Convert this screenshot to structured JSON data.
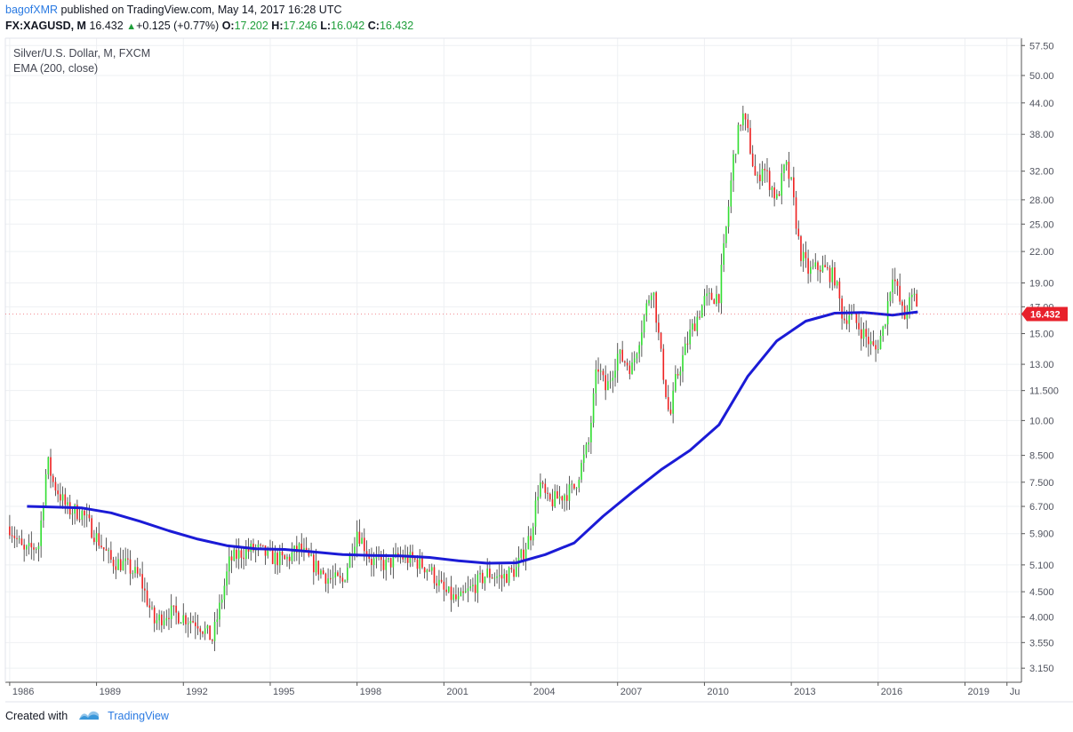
{
  "header": {
    "user": "bagofXMR",
    "published": "published on TradingView.com, May 14, 2017 16:28 UTC",
    "symbol": "FX:XAGUSD, M",
    "price": "16.432",
    "change": "+0.125 (+0.77%)",
    "o_label": "O:",
    "o": "17.202",
    "h_label": "H:",
    "h": "17.246",
    "l_label": "L:",
    "l": "16.042",
    "c_label": "C:",
    "c": "16.432"
  },
  "legend": {
    "title": "Silver/U.S. Dollar, M, FXCM",
    "indicator": "EMA (200, close)"
  },
  "footer": {
    "created_with": "Created with",
    "brand": "TradingView"
  },
  "colors": {
    "up": "#33dd33",
    "down": "#ee2222",
    "ema": "#1b1bd6",
    "price_label": "#e8212b",
    "grid": "#eef0f3"
  },
  "chart_data": {
    "type": "line",
    "title": "Silver/U.S. Dollar, M, FXCM",
    "xlabel": "",
    "ylabel": "",
    "y_scale": "log",
    "xlim": [
      1985.85,
      2020.95
    ],
    "ylim": [
      2.95,
      59.5
    ],
    "x_ticks": [
      "1986",
      "1989",
      "1992",
      "1995",
      "1998",
      "2001",
      "2004",
      "2007",
      "2010",
      "2013",
      "2016",
      "2019",
      "Ju"
    ],
    "y_ticks": [
      "57.50",
      "50.00",
      "44.00",
      "38.00",
      "32.00",
      "28.00",
      "25.00",
      "22.00",
      "19.00",
      "17.00",
      "15.00",
      "13.00",
      "11.500",
      "10.00",
      "8.500",
      "7.500",
      "6.700",
      "5.900",
      "5.100",
      "4.500",
      "4.000",
      "3.550",
      "3.150"
    ],
    "last_price_label": "16.432",
    "grid": true,
    "series": [
      {
        "name": "Silver/U.S. Dollar",
        "x": [
          1986.0,
          1986.5,
          1987.0,
          1987.3,
          1987.5,
          1988.0,
          1988.5,
          1989.0,
          1989.5,
          1990.0,
          1990.5,
          1991.0,
          1991.5,
          1992.0,
          1992.5,
          1993.0,
          1993.3,
          1993.6,
          1994.0,
          1994.5,
          1995.0,
          1995.5,
          1996.0,
          1996.5,
          1997.0,
          1997.5,
          1998.0,
          1998.5,
          1999.0,
          1999.5,
          2000.0,
          2000.5,
          2001.0,
          2001.5,
          2002.0,
          2002.5,
          2003.0,
          2003.5,
          2004.0,
          2004.3,
          2004.6,
          2005.0,
          2005.5,
          2006.0,
          2006.3,
          2006.6,
          2007.0,
          2007.5,
          2008.0,
          2008.2,
          2008.5,
          2008.8,
          2009.0,
          2009.5,
          2010.0,
          2010.5,
          2010.8,
          2011.0,
          2011.3,
          2011.5,
          2011.8,
          2012.0,
          2012.5,
          2012.8,
          2013.0,
          2013.3,
          2013.6,
          2014.0,
          2014.5,
          2014.8,
          2015.0,
          2015.5,
          2015.9,
          2016.2,
          2016.5,
          2016.9,
          2017.0,
          2017.3,
          2017.37
        ],
        "values": [
          6.1,
          5.4,
          5.6,
          8.3,
          7.5,
          6.6,
          6.5,
          5.8,
          5.2,
          5.1,
          4.8,
          3.9,
          4.1,
          4.0,
          3.9,
          3.6,
          4.3,
          5.2,
          5.4,
          5.5,
          5.3,
          5.2,
          5.5,
          5.1,
          4.8,
          4.7,
          6.0,
          5.2,
          5.1,
          5.3,
          5.2,
          5.0,
          4.5,
          4.3,
          4.6,
          4.9,
          4.8,
          5.0,
          5.9,
          7.5,
          6.8,
          7.0,
          7.3,
          9.0,
          13.0,
          11.5,
          13.6,
          12.8,
          17.0,
          19.0,
          13.5,
          10.0,
          12.0,
          15.0,
          17.5,
          18.0,
          26.0,
          34.0,
          42.0,
          38.0,
          30.0,
          33.0,
          28.0,
          33.0,
          30.0,
          22.0,
          20.0,
          20.5,
          19.5,
          16.0,
          16.5,
          15.0,
          13.8,
          15.5,
          20.0,
          16.0,
          17.0,
          18.0,
          16.432
        ]
      },
      {
        "name": "EMA (200, close)",
        "x": [
          1986.6,
          1987.5,
          1988.5,
          1989.5,
          1990.5,
          1991.5,
          1992.5,
          1993.5,
          1994.5,
          1995.5,
          1996.5,
          1997.5,
          1998.5,
          1999.5,
          2000.5,
          2001.5,
          2002.5,
          2003.5,
          2004.5,
          2005.5,
          2006.5,
          2007.5,
          2008.5,
          2009.5,
          2010.5,
          2011.5,
          2012.5,
          2013.5,
          2014.5,
          2015.5,
          2016.5,
          2017.37
        ],
        "values": [
          6.7,
          6.68,
          6.65,
          6.5,
          6.25,
          5.98,
          5.75,
          5.58,
          5.5,
          5.48,
          5.42,
          5.35,
          5.33,
          5.32,
          5.28,
          5.2,
          5.14,
          5.15,
          5.35,
          5.65,
          6.4,
          7.15,
          7.95,
          8.7,
          9.8,
          12.3,
          14.5,
          15.9,
          16.5,
          16.55,
          16.35,
          16.6
        ]
      }
    ]
  }
}
